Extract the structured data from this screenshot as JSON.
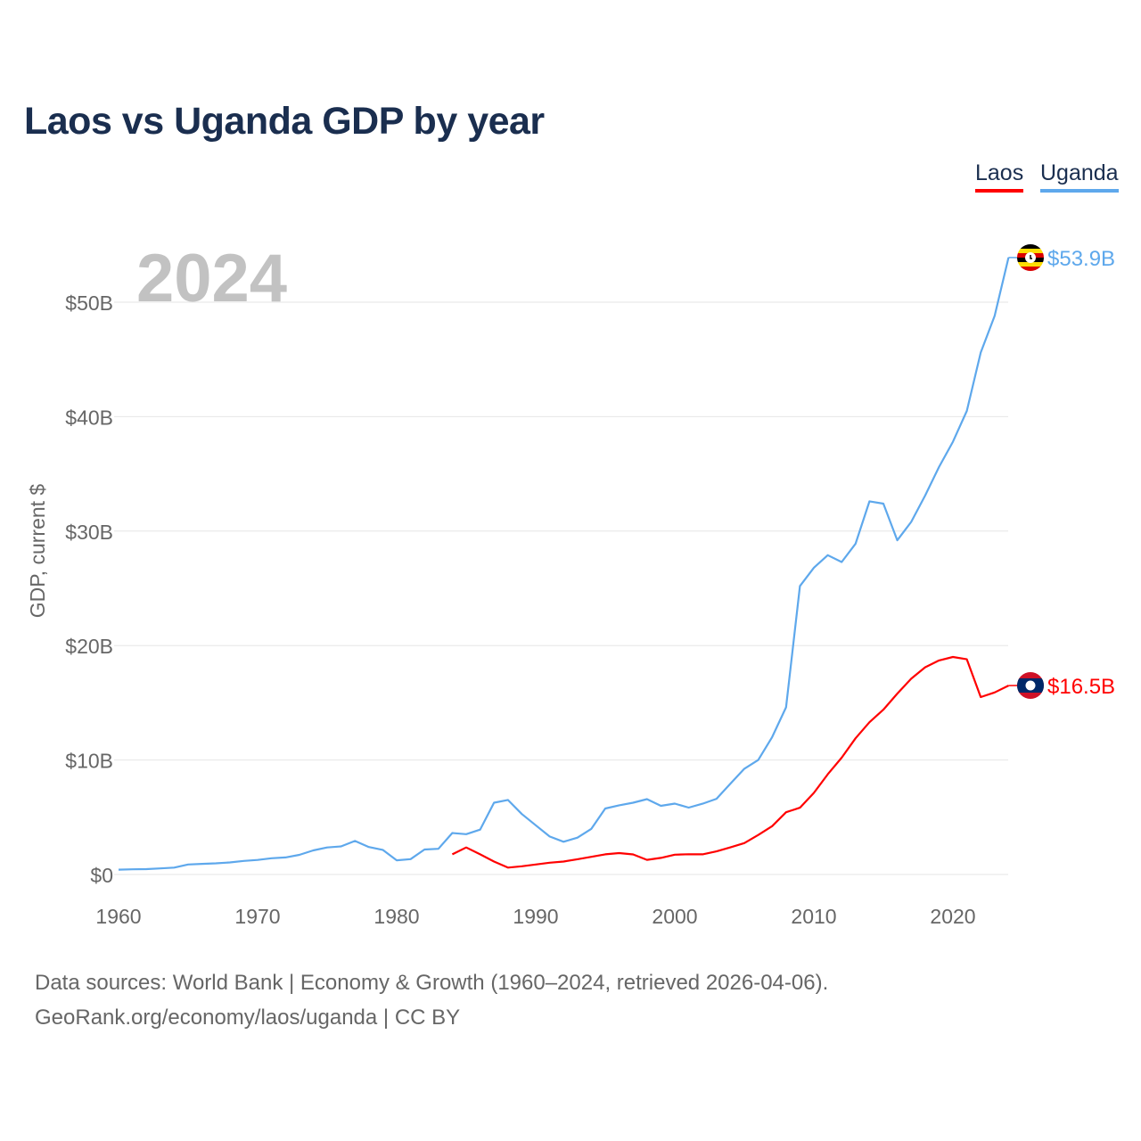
{
  "chart_data": {
    "type": "line",
    "title": "Laos vs Uganda GDP by year",
    "year_watermark": "2024",
    "xlabel": "",
    "ylabel": "GDP, current $",
    "xlim": [
      1960,
      2024
    ],
    "ylim": [
      0,
      55
    ],
    "x_ticks": [
      1960,
      1970,
      1980,
      1990,
      2000,
      2010,
      2020
    ],
    "x_tick_labels": [
      "1960",
      "1970",
      "1980",
      "1990",
      "2000",
      "2010",
      "2020"
    ],
    "y_ticks": [
      0,
      10,
      20,
      30,
      40,
      50
    ],
    "y_tick_labels": [
      "$0",
      "$10B",
      "$20B",
      "$30B",
      "$40B",
      "$50B"
    ],
    "grid": true,
    "legend_position": "top-right",
    "series": [
      {
        "name": "Laos",
        "color": "#ff0000",
        "end_label": "$16.5B",
        "flag": "laos-flag",
        "start_year": 1984,
        "values": [
          1.76,
          2.36,
          1.76,
          1.13,
          0.6,
          0.72,
          0.87,
          1.03,
          1.13,
          1.33,
          1.54,
          1.76,
          1.87,
          1.75,
          1.28,
          1.45,
          1.73,
          1.77,
          1.76,
          2.02,
          2.37,
          2.74,
          3.45,
          4.22,
          5.44,
          5.83,
          7.13,
          8.75,
          10.2,
          11.9,
          13.3,
          14.4,
          15.8,
          17.1,
          18.1,
          18.7,
          19.0,
          18.8,
          15.5,
          15.9,
          16.5
        ]
      },
      {
        "name": "Uganda",
        "color": "#5ea8ec",
        "end_label": "$53.9B",
        "flag": "uganda-flag",
        "start_year": 1960,
        "values": [
          0.42,
          0.45,
          0.47,
          0.53,
          0.6,
          0.87,
          0.93,
          0.97,
          1.05,
          1.18,
          1.27,
          1.42,
          1.49,
          1.71,
          2.1,
          2.36,
          2.45,
          2.93,
          2.4,
          2.15,
          1.24,
          1.34,
          2.18,
          2.24,
          3.62,
          3.52,
          3.92,
          6.27,
          6.51,
          5.28,
          4.3,
          3.32,
          2.86,
          3.22,
          3.99,
          5.76,
          6.04,
          6.27,
          6.58,
          6.0,
          6.19,
          5.84,
          6.18,
          6.61,
          7.94,
          9.24,
          10.0,
          12.0,
          14.6,
          25.2,
          26.8,
          27.9,
          27.3,
          28.9,
          32.6,
          32.4,
          29.2,
          30.8,
          33.1,
          35.6,
          37.8,
          40.5,
          45.6,
          48.8,
          53.9
        ]
      }
    ]
  },
  "footer": {
    "line1": "Data sources: World Bank | Economy & Growth (1960–2024, retrieved 2026-04-06).",
    "line2": "GeoRank.org/economy/laos/uganda | CC BY"
  }
}
